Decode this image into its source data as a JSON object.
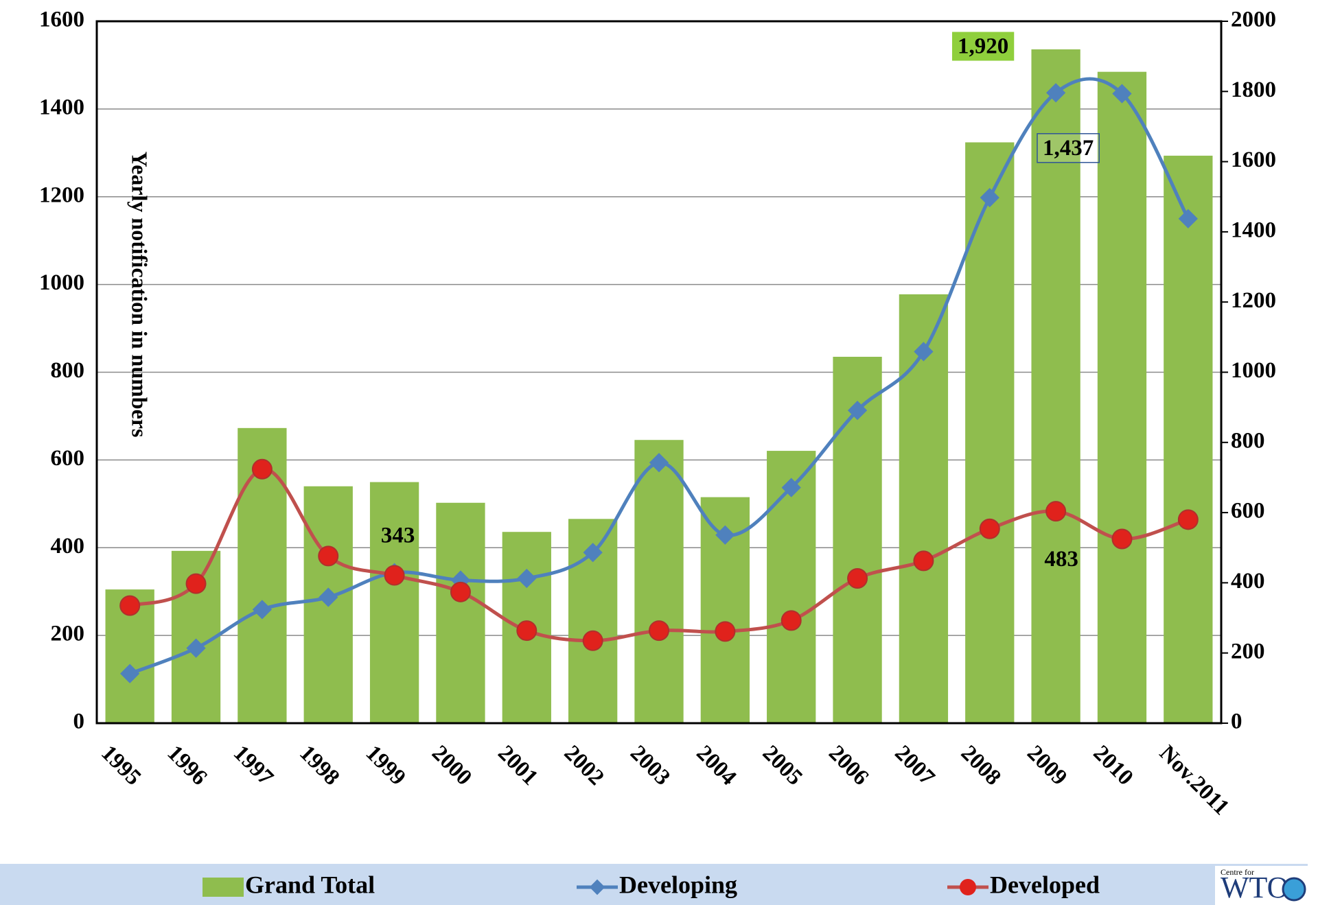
{
  "chart_data": {
    "type": "bar",
    "y_label": "Yearly notification in numbers",
    "categories": [
      "1995",
      "1996",
      "1997",
      "1998",
      "1999",
      "2000",
      "2001",
      "2002",
      "2003",
      "2004",
      "2005",
      "2006",
      "2007",
      "2008",
      "2009",
      "2010",
      "Nov.2011"
    ],
    "series": [
      {
        "name": "Grand Total",
        "type": "bar",
        "axis": "y2",
        "color": "#8fbd4e",
        "values": [
          381,
          491,
          841,
          675,
          687,
          628,
          545,
          582,
          807,
          644,
          776,
          1044,
          1222,
          1655,
          1920,
          1856,
          1617
        ],
        "value_labels": [
          null,
          null,
          null,
          null,
          null,
          null,
          null,
          null,
          null,
          null,
          null,
          null,
          null,
          null,
          "1,920",
          null,
          null
        ]
      },
      {
        "name": "Developing",
        "type": "line",
        "color": "#4f81bd",
        "values": [
          113,
          171,
          259,
          287,
          343,
          326,
          330,
          389,
          594,
          429,
          537,
          713,
          847,
          1198,
          1437,
          1435,
          1150
        ],
        "value_labels": [
          null,
          null,
          null,
          null,
          "343",
          null,
          null,
          null,
          null,
          null,
          null,
          null,
          null,
          null,
          "1,437",
          null,
          null
        ]
      },
      {
        "name": "Developed",
        "type": "line",
        "color": "#c0504d",
        "values": [
          268,
          318,
          579,
          381,
          337,
          299,
          211,
          188,
          211,
          209,
          234,
          330,
          370,
          443,
          483,
          420,
          464
        ],
        "value_labels": [
          null,
          null,
          null,
          null,
          null,
          null,
          null,
          null,
          null,
          null,
          null,
          null,
          null,
          null,
          "483",
          null,
          null
        ]
      }
    ],
    "ylim": [
      0,
      1600
    ],
    "yticks": [
      0,
      200,
      400,
      600,
      800,
      1000,
      1200,
      1400,
      1600
    ],
    "y2lim": [
      0,
      2000
    ],
    "y2ticks": [
      0,
      200,
      400,
      600,
      800,
      1000,
      1200,
      1400,
      1600,
      1800,
      2000
    ],
    "grid": true,
    "legend": "bottom"
  },
  "logo": {
    "caption": "Centre for",
    "text": "WTO"
  }
}
